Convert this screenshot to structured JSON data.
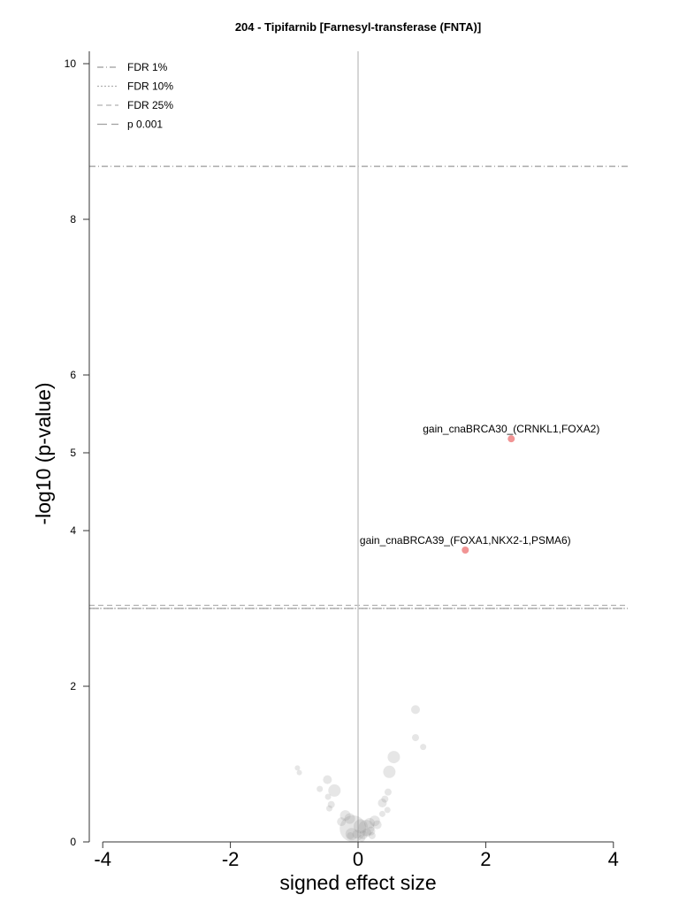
{
  "chart_data": {
    "type": "scatter",
    "title": "204 - Tipifarnib [Farnesyl-transferase (FNTA)]",
    "xlabel": "signed effect size",
    "ylabel": "-log10 (p-value)",
    "xlim": [
      -4.2,
      4.2
    ],
    "ylim": [
      0,
      10.1
    ],
    "xticks": [
      "-4",
      "-2",
      "0",
      "2",
      "4"
    ],
    "yticks": [
      "0",
      "2",
      "4",
      "5",
      "6",
      "8",
      "10"
    ],
    "grid": false,
    "legend_position": "top-left",
    "thresholds": [
      {
        "name": "FDR 1%",
        "y": 8.68,
        "style": "dashdot",
        "color": "#9a9a9a"
      },
      {
        "name": "FDR 10%",
        "y": 3.0,
        "style": "dotted",
        "color": "#b0b0b0"
      },
      {
        "name": "FDR 25%",
        "y": 3.04,
        "style": "dashed",
        "color": "#b0b0b0"
      },
      {
        "name": "p 0.001",
        "y": 3.0,
        "style": "longdash",
        "color": "#a0a0a0"
      }
    ],
    "vertical_line": {
      "x": 0,
      "color": "#c8c8c8"
    },
    "significant_points": [
      {
        "x": 2.4,
        "y": 5.18,
        "label": "gain_cnaBRCA30_(CRNKL1,FOXA2)",
        "color": "#f19494"
      },
      {
        "x": 1.68,
        "y": 3.75,
        "label": "gain_cnaBRCA39_(FOXA1,NKX2-1,PSMA6)",
        "color": "#f19494"
      }
    ],
    "background_points": [
      {
        "x": 0.9,
        "y": 1.7,
        "r": 5
      },
      {
        "x": 0.9,
        "y": 1.34,
        "r": 4
      },
      {
        "x": 1.02,
        "y": 1.22,
        "r": 3.5
      },
      {
        "x": 0.56,
        "y": 1.09,
        "r": 7
      },
      {
        "x": 0.49,
        "y": 0.9,
        "r": 7
      },
      {
        "x": 0.47,
        "y": 0.64,
        "r": 4
      },
      {
        "x": 0.42,
        "y": 0.55,
        "r": 4
      },
      {
        "x": 0.38,
        "y": 0.5,
        "r": 5
      },
      {
        "x": 0.46,
        "y": 0.41,
        "r": 3.5
      },
      {
        "x": 0.38,
        "y": 0.36,
        "r": 3.5
      },
      {
        "x": -0.95,
        "y": 0.95,
        "r": 3
      },
      {
        "x": -0.92,
        "y": 0.89,
        "r": 3
      },
      {
        "x": -0.48,
        "y": 0.8,
        "r": 5
      },
      {
        "x": -0.6,
        "y": 0.68,
        "r": 3.5
      },
      {
        "x": -0.37,
        "y": 0.66,
        "r": 7
      },
      {
        "x": -0.47,
        "y": 0.58,
        "r": 3.5
      },
      {
        "x": -0.42,
        "y": 0.48,
        "r": 4
      },
      {
        "x": -0.45,
        "y": 0.43,
        "r": 3.5
      },
      {
        "x": -0.2,
        "y": 0.34,
        "r": 6
      },
      {
        "x": -0.13,
        "y": 0.3,
        "r": 6
      },
      {
        "x": -0.26,
        "y": 0.26,
        "r": 5
      },
      {
        "x": 0.26,
        "y": 0.27,
        "r": 6
      },
      {
        "x": 0.18,
        "y": 0.24,
        "r": 6
      },
      {
        "x": 0.3,
        "y": 0.22,
        "r": 5
      },
      {
        "x": 0.04,
        "y": 0.2,
        "r": 8
      },
      {
        "x": -0.08,
        "y": 0.17,
        "r": 15
      },
      {
        "x": 0.13,
        "y": 0.18,
        "r": 9
      },
      {
        "x": 0.2,
        "y": 0.14,
        "r": 5
      },
      {
        "x": 0.14,
        "y": 0.12,
        "r": 5
      },
      {
        "x": -0.1,
        "y": 0.1,
        "r": 7
      },
      {
        "x": -0.02,
        "y": 0.1,
        "r": 5
      },
      {
        "x": 0.08,
        "y": 0.09,
        "r": 5
      },
      {
        "x": -0.12,
        "y": 0.08,
        "r": 4
      },
      {
        "x": 0.22,
        "y": 0.08,
        "r": 4
      },
      {
        "x": 0.06,
        "y": 0.05,
        "r": 4
      }
    ]
  }
}
